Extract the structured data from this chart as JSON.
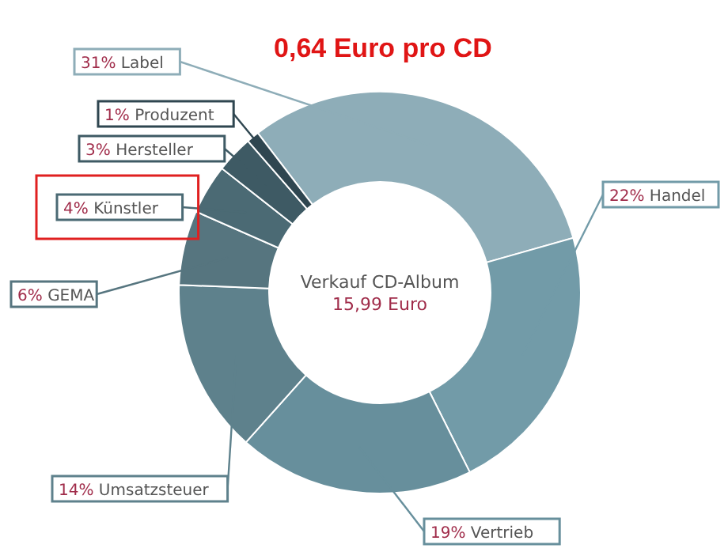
{
  "chart_data": {
    "type": "donut",
    "title": "0,64 Euro pro CD",
    "categories": [
      "Label",
      "Handel",
      "Vertrieb",
      "Umsatzsteuer",
      "GEMA",
      "Künstler",
      "Hersteller",
      "Produzent"
    ],
    "values": [
      31,
      22,
      19,
      14,
      6,
      4,
      3,
      1
    ],
    "colors": [
      "#8eadb8",
      "#729ba8",
      "#678f9c",
      "#5e818c",
      "#56757f",
      "#4b6a74",
      "#3e5a64",
      "#2f4650"
    ],
    "value_labels": [
      "31%",
      "22%",
      "19%",
      "14%",
      "6%",
      "4%",
      "3%",
      "1%"
    ],
    "annotations": [
      "Verkauf CD-Album",
      "15,99 Euro"
    ]
  }
}
